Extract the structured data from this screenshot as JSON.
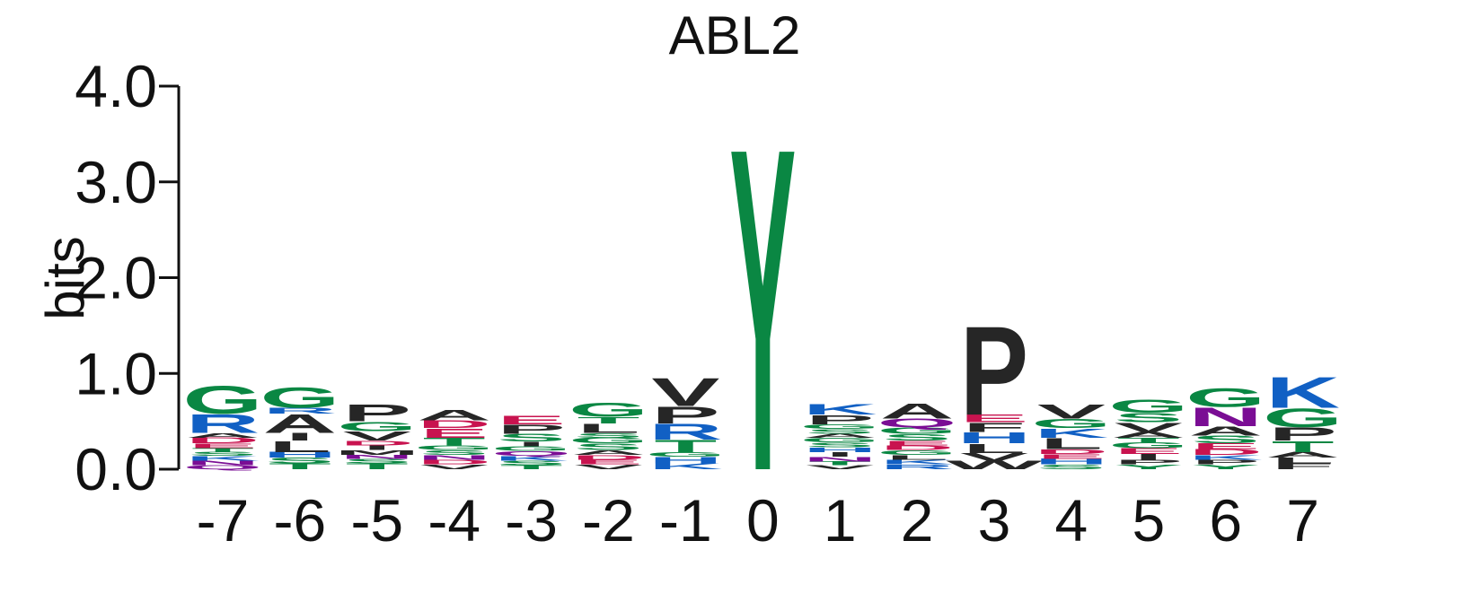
{
  "chart_data": {
    "type": "sequence-logo",
    "title": "ABL2",
    "ylabel": "bits",
    "ylim": [
      0,
      4
    ],
    "yticks": [
      "0.0",
      "1.0",
      "2.0",
      "3.0",
      "4.0"
    ],
    "colors": {
      "green": "#0a8743",
      "blue": "#1160c4",
      "red": "#c8134f",
      "purple": "#7a0d94",
      "black": "#262626"
    },
    "residue_colors": {
      "G": "green",
      "S": "green",
      "T": "green",
      "Y": "green",
      "C": "green",
      "Q": "purple",
      "N": "purple",
      "K": "blue",
      "R": "blue",
      "H": "blue",
      "D": "red",
      "E": "red",
      "A": "black",
      "V": "black",
      "L": "black",
      "I": "black",
      "P": "black",
      "W": "black",
      "F": "black",
      "M": "black"
    },
    "positions": [
      {
        "label": "-7",
        "stack": [
          [
            "Q",
            0.04
          ],
          [
            "N",
            0.05
          ],
          [
            "K",
            0.05
          ],
          [
            "S",
            0.04
          ],
          [
            "T",
            0.04
          ],
          [
            "E",
            0.05
          ],
          [
            "D",
            0.06
          ],
          [
            "A",
            0.05
          ],
          [
            "R",
            0.2
          ],
          [
            "G",
            0.3
          ]
        ]
      },
      {
        "label": "-6",
        "stack": [
          [
            "T",
            0.06
          ],
          [
            "S",
            0.06
          ],
          [
            "H",
            0.06
          ],
          [
            "L",
            0.12
          ],
          [
            "I",
            0.08
          ],
          [
            "A",
            0.2
          ],
          [
            "R",
            0.06
          ],
          [
            "G",
            0.22
          ]
        ]
      },
      {
        "label": "-5",
        "stack": [
          [
            "T",
            0.06
          ],
          [
            "S",
            0.05
          ],
          [
            "N",
            0.04
          ],
          [
            "M",
            0.05
          ],
          [
            "I",
            0.05
          ],
          [
            "D",
            0.05
          ],
          [
            "V",
            0.1
          ],
          [
            "G",
            0.1
          ],
          [
            "P",
            0.18
          ]
        ]
      },
      {
        "label": "-4",
        "stack": [
          [
            "V",
            0.05
          ],
          [
            "D",
            0.05
          ],
          [
            "N",
            0.05
          ],
          [
            "S",
            0.05
          ],
          [
            "G",
            0.05
          ],
          [
            "T",
            0.08
          ],
          [
            "E",
            0.1
          ],
          [
            "D",
            0.08
          ],
          [
            "A",
            0.11
          ]
        ]
      },
      {
        "label": "-3",
        "stack": [
          [
            "T",
            0.04
          ],
          [
            "S",
            0.05
          ],
          [
            "K",
            0.05
          ],
          [
            "Q",
            0.05
          ],
          [
            "G",
            0.05
          ],
          [
            "I",
            0.05
          ],
          [
            "S",
            0.08
          ],
          [
            "P",
            0.1
          ],
          [
            "E",
            0.09
          ]
        ]
      },
      {
        "label": "-2",
        "stack": [
          [
            "V",
            0.05
          ],
          [
            "E",
            0.05
          ],
          [
            "D",
            0.05
          ],
          [
            "A",
            0.05
          ],
          [
            "S",
            0.07
          ],
          [
            "G",
            0.06
          ],
          [
            "S",
            0.05
          ],
          [
            "L",
            0.1
          ],
          [
            "T",
            0.07
          ],
          [
            "G",
            0.15
          ]
        ]
      },
      {
        "label": "-1",
        "stack": [
          [
            "K",
            0.06
          ],
          [
            "H",
            0.07
          ],
          [
            "G",
            0.05
          ],
          [
            "T",
            0.13
          ],
          [
            "R",
            0.17
          ],
          [
            "P",
            0.18
          ],
          [
            "V",
            0.3
          ]
        ]
      },
      {
        "label": "0",
        "stack": [
          [
            "Y",
            3.45
          ]
        ]
      },
      {
        "label": "1",
        "stack": [
          [
            "V",
            0.04
          ],
          [
            "T",
            0.04
          ],
          [
            "N",
            0.05
          ],
          [
            "I",
            0.05
          ],
          [
            "H",
            0.05
          ],
          [
            "S",
            0.05
          ],
          [
            "G",
            0.05
          ],
          [
            "A",
            0.04
          ],
          [
            "S",
            0.05
          ],
          [
            "G",
            0.05
          ],
          [
            "P",
            0.1
          ],
          [
            "K",
            0.11
          ]
        ]
      },
      {
        "label": "2",
        "stack": [
          [
            "R",
            0.05
          ],
          [
            "K",
            0.05
          ],
          [
            "L",
            0.05
          ],
          [
            "G",
            0.05
          ],
          [
            "D",
            0.05
          ],
          [
            "E",
            0.05
          ],
          [
            "S",
            0.07
          ],
          [
            "G",
            0.07
          ],
          [
            "Q",
            0.09
          ],
          [
            "A",
            0.16
          ]
        ]
      },
      {
        "label": "3",
        "stack": [
          [
            "W",
            0.09
          ],
          [
            "V",
            0.08
          ],
          [
            "L",
            0.1
          ],
          [
            "H",
            0.12
          ],
          [
            "F",
            0.1
          ],
          [
            "E",
            0.08
          ],
          [
            "P",
            0.95
          ]
        ]
      },
      {
        "label": "4",
        "stack": [
          [
            "S",
            0.05
          ],
          [
            "H",
            0.06
          ],
          [
            "E",
            0.05
          ],
          [
            "D",
            0.05
          ],
          [
            "L",
            0.12
          ],
          [
            "K",
            0.1
          ],
          [
            "G",
            0.1
          ],
          [
            "V",
            0.15
          ]
        ]
      },
      {
        "label": "5",
        "stack": [
          [
            "Y",
            0.05
          ],
          [
            "P",
            0.05
          ],
          [
            "I",
            0.06
          ],
          [
            "E",
            0.06
          ],
          [
            "G",
            0.06
          ],
          [
            "T",
            0.05
          ],
          [
            "A",
            0.06
          ],
          [
            "V",
            0.1
          ],
          [
            "S",
            0.1
          ],
          [
            "G",
            0.14
          ]
        ]
      },
      {
        "label": "6",
        "stack": [
          [
            "Y",
            0.05
          ],
          [
            "P",
            0.05
          ],
          [
            "K",
            0.05
          ],
          [
            "D",
            0.06
          ],
          [
            "E",
            0.06
          ],
          [
            "S",
            0.08
          ],
          [
            "A",
            0.1
          ],
          [
            "N",
            0.2
          ],
          [
            "G",
            0.2
          ]
        ]
      },
      {
        "label": "7",
        "stack": [
          [
            "F",
            0.06
          ],
          [
            "L",
            0.06
          ],
          [
            "A",
            0.06
          ],
          [
            "T",
            0.12
          ],
          [
            "P",
            0.14
          ],
          [
            "G",
            0.2
          ],
          [
            "K",
            0.33
          ]
        ]
      }
    ]
  }
}
